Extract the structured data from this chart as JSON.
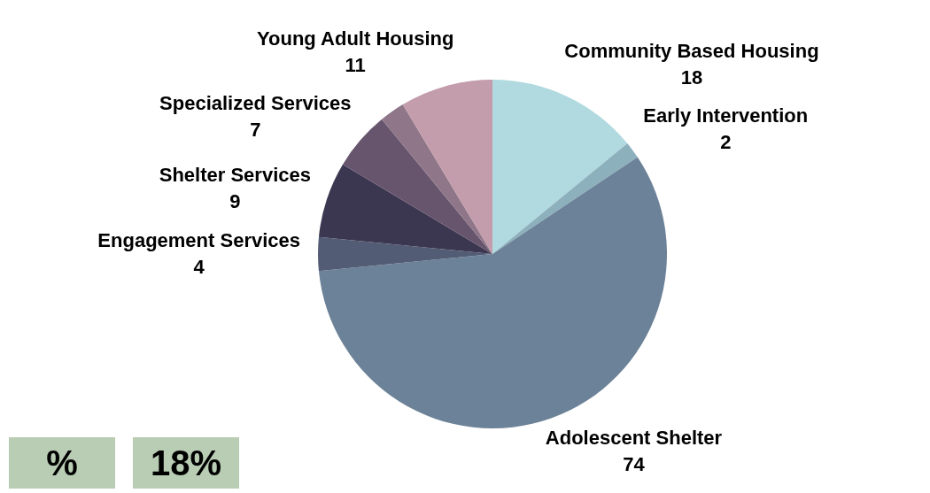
{
  "chart_data": {
    "type": "pie",
    "categories": [
      "Community Based Housing",
      "Early Intervention",
      "Adolescent Shelter",
      "Engagement Services",
      "Shelter Services",
      "Specialized Services",
      null,
      "Young Adult Housing"
    ],
    "values": [
      18,
      2,
      74,
      4,
      9,
      7,
      3,
      11
    ],
    "colors": [
      "#b0dadf",
      "#8db0bd",
      "#6c8298",
      "#525c75",
      "#3c3750",
      "#67556d",
      "#8f7689",
      "#c39dab"
    ],
    "value_labels": [
      "18",
      "2",
      "74",
      "4",
      "9",
      "7",
      null,
      "11"
    ],
    "legend": false,
    "annotations": [
      "%",
      "18%"
    ]
  }
}
